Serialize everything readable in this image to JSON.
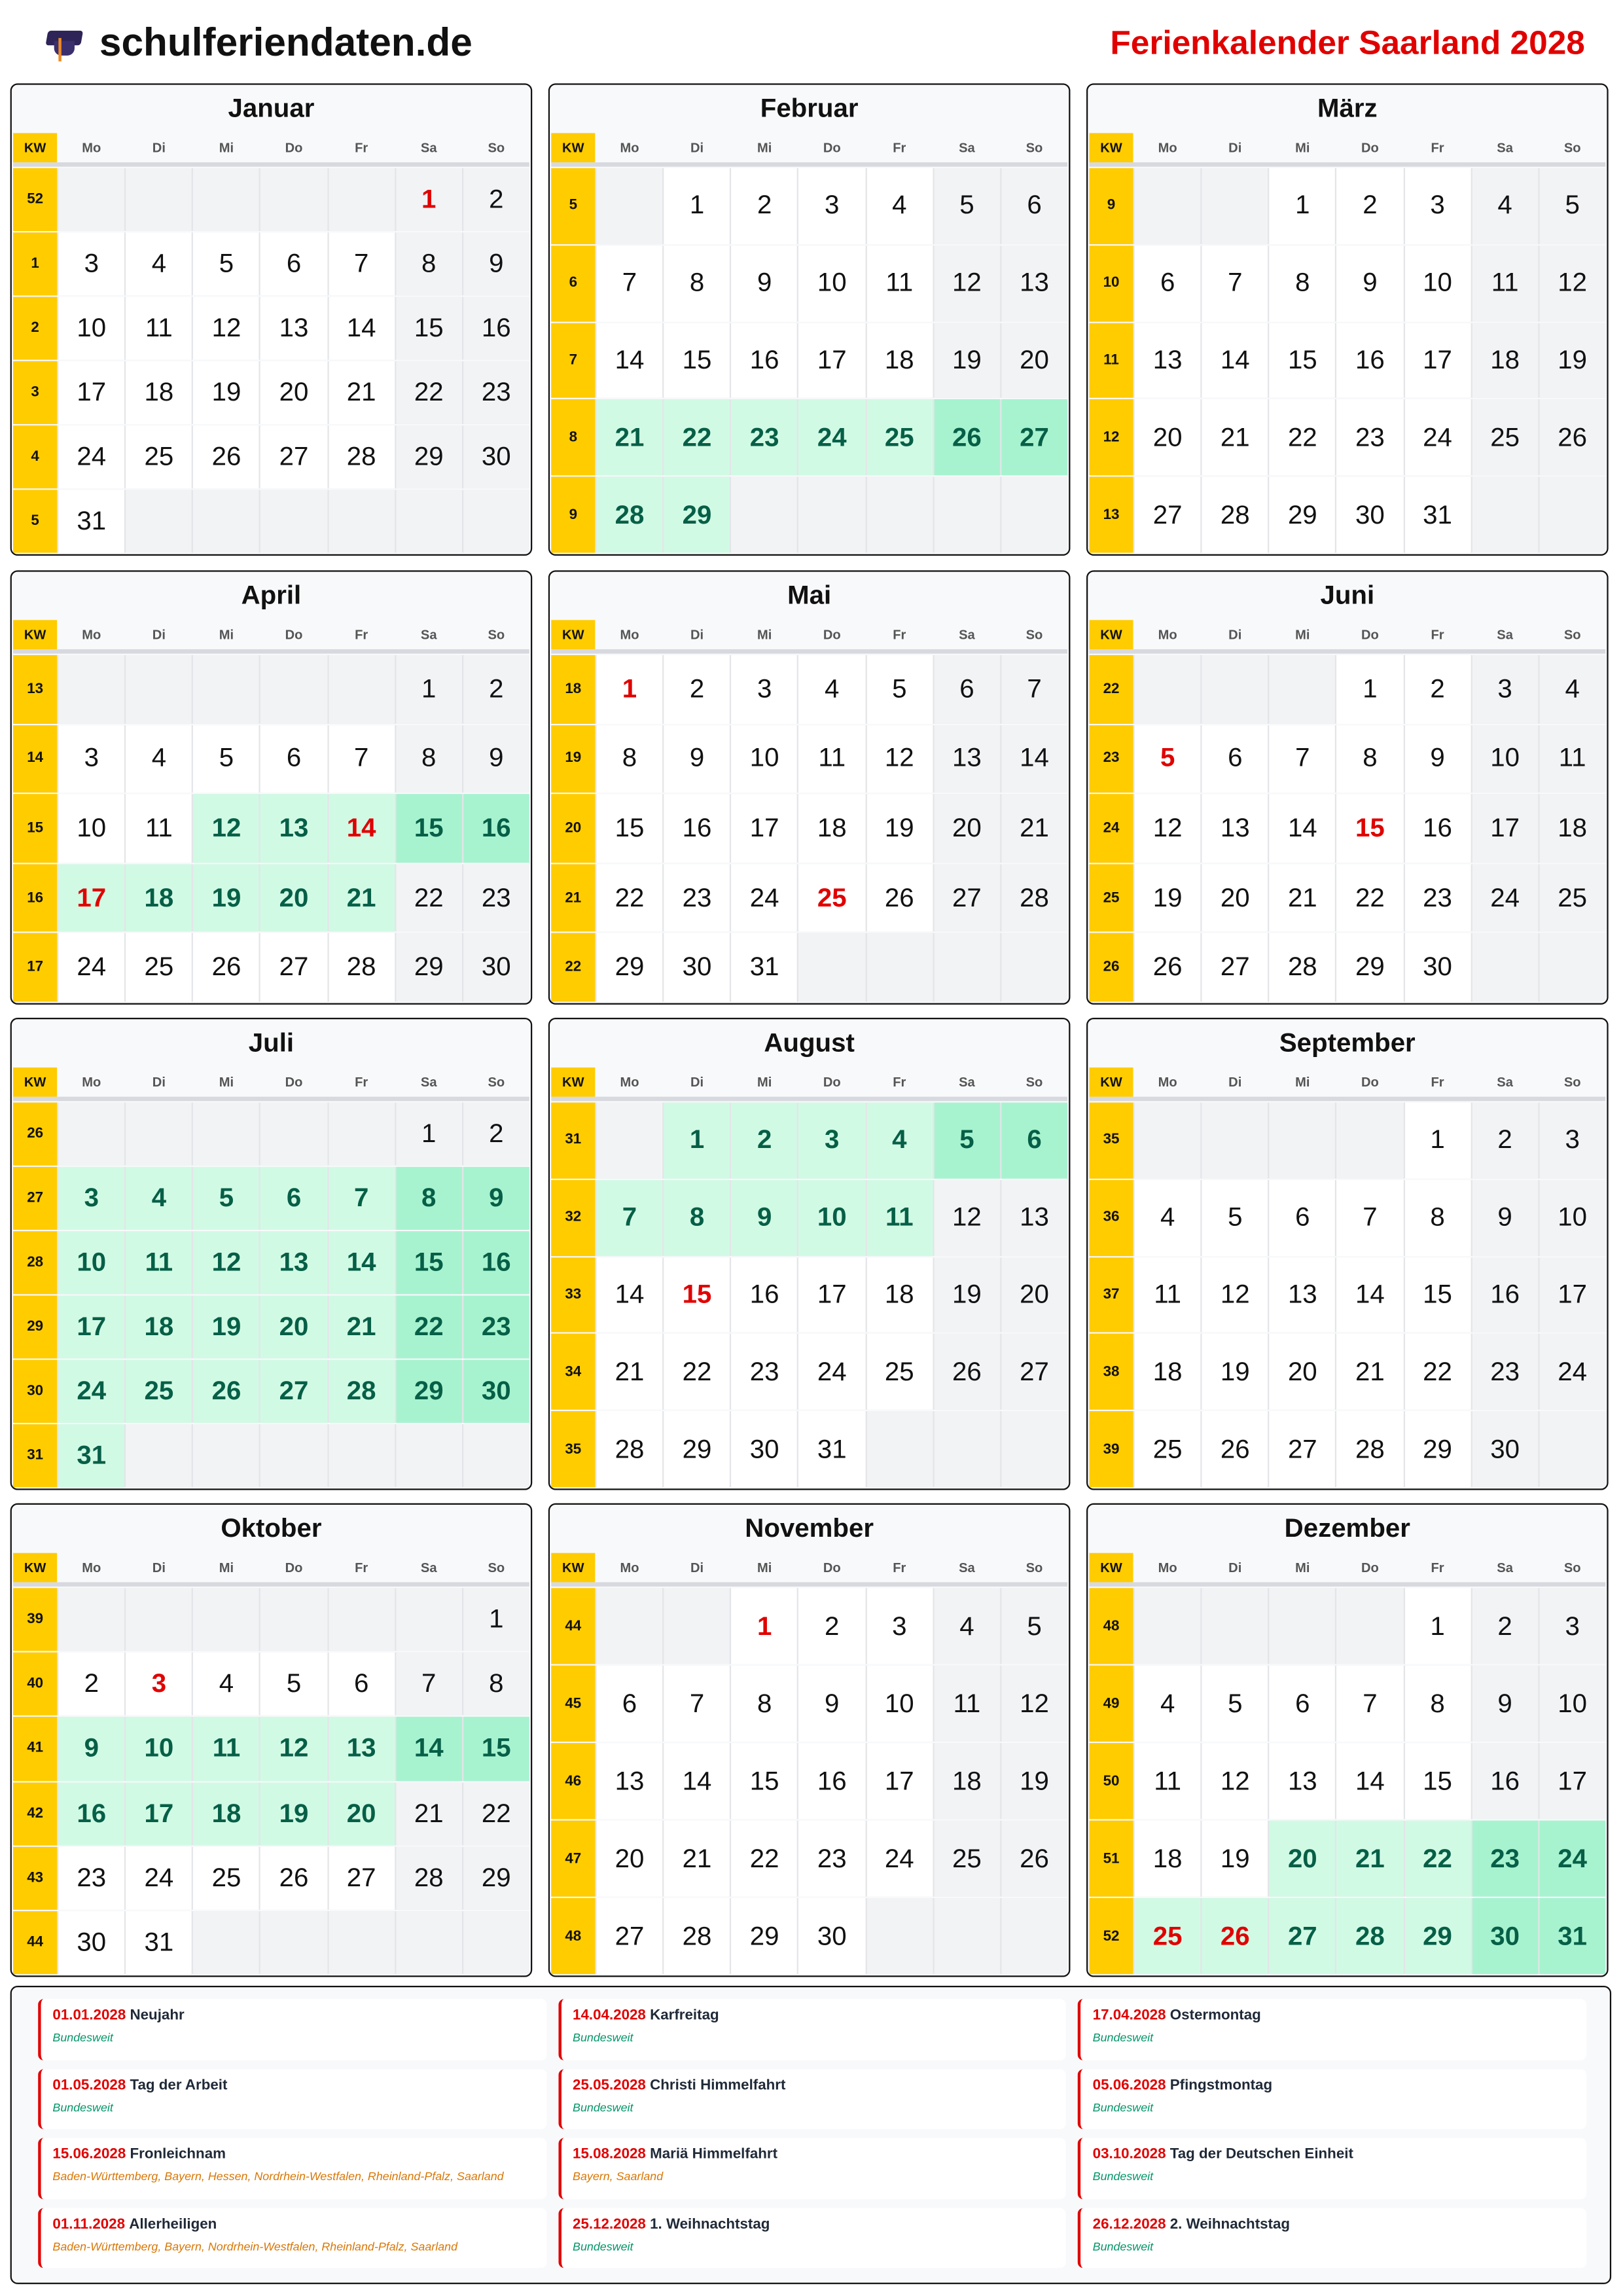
{
  "header": {
    "logo_text": "schulferiendaten.de",
    "title": "Ferienkalender Saarland 2028"
  },
  "colors": {
    "red": "#e00000",
    "kw_yellow": "#ffcc00",
    "vacation": "#d1fae5",
    "vacation_weekend": "#a7f3d0",
    "vacation_text": "#065f46",
    "weekend": "#f2f3f5",
    "bundesweit": "#059669",
    "regional": "#d97706"
  },
  "labels": {
    "kw": "KW",
    "days": [
      "Mo",
      "Di",
      "Mi",
      "Do",
      "Fr",
      "Sa",
      "So"
    ]
  },
  "months": [
    {
      "name": "Januar",
      "weeks": [
        {
          "kw": 52,
          "days": [
            null,
            null,
            null,
            null,
            null,
            1,
            2
          ]
        },
        {
          "kw": 1,
          "days": [
            3,
            4,
            5,
            6,
            7,
            8,
            9
          ]
        },
        {
          "kw": 2,
          "days": [
            10,
            11,
            12,
            13,
            14,
            15,
            16
          ]
        },
        {
          "kw": 3,
          "days": [
            17,
            18,
            19,
            20,
            21,
            22,
            23
          ]
        },
        {
          "kw": 4,
          "days": [
            24,
            25,
            26,
            27,
            28,
            29,
            30
          ]
        },
        {
          "kw": 5,
          "days": [
            31,
            null,
            null,
            null,
            null,
            null,
            null
          ]
        }
      ],
      "vacation": [],
      "holidays": [
        1
      ]
    },
    {
      "name": "Februar",
      "weeks": [
        {
          "kw": 5,
          "days": [
            null,
            1,
            2,
            3,
            4,
            5,
            6
          ]
        },
        {
          "kw": 6,
          "days": [
            7,
            8,
            9,
            10,
            11,
            12,
            13
          ]
        },
        {
          "kw": 7,
          "days": [
            14,
            15,
            16,
            17,
            18,
            19,
            20
          ]
        },
        {
          "kw": 8,
          "days": [
            21,
            22,
            23,
            24,
            25,
            26,
            27
          ]
        },
        {
          "kw": 9,
          "days": [
            28,
            29,
            null,
            null,
            null,
            null,
            null
          ]
        }
      ],
      "vacation": [
        21,
        22,
        23,
        24,
        25,
        26,
        27,
        28,
        29
      ],
      "holidays": []
    },
    {
      "name": "März",
      "weeks": [
        {
          "kw": 9,
          "days": [
            null,
            null,
            1,
            2,
            3,
            4,
            5
          ]
        },
        {
          "kw": 10,
          "days": [
            6,
            7,
            8,
            9,
            10,
            11,
            12
          ]
        },
        {
          "kw": 11,
          "days": [
            13,
            14,
            15,
            16,
            17,
            18,
            19
          ]
        },
        {
          "kw": 12,
          "days": [
            20,
            21,
            22,
            23,
            24,
            25,
            26
          ]
        },
        {
          "kw": 13,
          "days": [
            27,
            28,
            29,
            30,
            31,
            null,
            null
          ]
        }
      ],
      "vacation": [],
      "holidays": []
    },
    {
      "name": "April",
      "weeks": [
        {
          "kw": 13,
          "days": [
            null,
            null,
            null,
            null,
            null,
            1,
            2
          ]
        },
        {
          "kw": 14,
          "days": [
            3,
            4,
            5,
            6,
            7,
            8,
            9
          ]
        },
        {
          "kw": 15,
          "days": [
            10,
            11,
            12,
            13,
            14,
            15,
            16
          ]
        },
        {
          "kw": 16,
          "days": [
            17,
            18,
            19,
            20,
            21,
            22,
            23
          ]
        },
        {
          "kw": 17,
          "days": [
            24,
            25,
            26,
            27,
            28,
            29,
            30
          ]
        }
      ],
      "vacation": [
        12,
        13,
        14,
        15,
        16,
        17,
        18,
        19,
        20,
        21
      ],
      "holidays": [
        14,
        17
      ]
    },
    {
      "name": "Mai",
      "weeks": [
        {
          "kw": 18,
          "days": [
            1,
            2,
            3,
            4,
            5,
            6,
            7
          ]
        },
        {
          "kw": 19,
          "days": [
            8,
            9,
            10,
            11,
            12,
            13,
            14
          ]
        },
        {
          "kw": 20,
          "days": [
            15,
            16,
            17,
            18,
            19,
            20,
            21
          ]
        },
        {
          "kw": 21,
          "days": [
            22,
            23,
            24,
            25,
            26,
            27,
            28
          ]
        },
        {
          "kw": 22,
          "days": [
            29,
            30,
            31,
            null,
            null,
            null,
            null
          ]
        }
      ],
      "vacation": [],
      "holidays": [
        1,
        25
      ]
    },
    {
      "name": "Juni",
      "weeks": [
        {
          "kw": 22,
          "days": [
            null,
            null,
            null,
            1,
            2,
            3,
            4
          ]
        },
        {
          "kw": 23,
          "days": [
            5,
            6,
            7,
            8,
            9,
            10,
            11
          ]
        },
        {
          "kw": 24,
          "days": [
            12,
            13,
            14,
            15,
            16,
            17,
            18
          ]
        },
        {
          "kw": 25,
          "days": [
            19,
            20,
            21,
            22,
            23,
            24,
            25
          ]
        },
        {
          "kw": 26,
          "days": [
            26,
            27,
            28,
            29,
            30,
            null,
            null
          ]
        }
      ],
      "vacation": [],
      "holidays": [
        5,
        15
      ]
    },
    {
      "name": "Juli",
      "weeks": [
        {
          "kw": 26,
          "days": [
            null,
            null,
            null,
            null,
            null,
            1,
            2
          ]
        },
        {
          "kw": 27,
          "days": [
            3,
            4,
            5,
            6,
            7,
            8,
            9
          ]
        },
        {
          "kw": 28,
          "days": [
            10,
            11,
            12,
            13,
            14,
            15,
            16
          ]
        },
        {
          "kw": 29,
          "days": [
            17,
            18,
            19,
            20,
            21,
            22,
            23
          ]
        },
        {
          "kw": 30,
          "days": [
            24,
            25,
            26,
            27,
            28,
            29,
            30
          ]
        },
        {
          "kw": 31,
          "days": [
            31,
            null,
            null,
            null,
            null,
            null,
            null
          ]
        }
      ],
      "vacation": [
        3,
        4,
        5,
        6,
        7,
        8,
        9,
        10,
        11,
        12,
        13,
        14,
        15,
        16,
        17,
        18,
        19,
        20,
        21,
        22,
        23,
        24,
        25,
        26,
        27,
        28,
        29,
        30,
        31
      ],
      "holidays": []
    },
    {
      "name": "August",
      "weeks": [
        {
          "kw": 31,
          "days": [
            null,
            1,
            2,
            3,
            4,
            5,
            6
          ]
        },
        {
          "kw": 32,
          "days": [
            7,
            8,
            9,
            10,
            11,
            12,
            13
          ]
        },
        {
          "kw": 33,
          "days": [
            14,
            15,
            16,
            17,
            18,
            19,
            20
          ]
        },
        {
          "kw": 34,
          "days": [
            21,
            22,
            23,
            24,
            25,
            26,
            27
          ]
        },
        {
          "kw": 35,
          "days": [
            28,
            29,
            30,
            31,
            null,
            null,
            null
          ]
        }
      ],
      "vacation": [
        1,
        2,
        3,
        4,
        5,
        6,
        7,
        8,
        9,
        10,
        11
      ],
      "holidays": [
        15
      ]
    },
    {
      "name": "September",
      "weeks": [
        {
          "kw": 35,
          "days": [
            null,
            null,
            null,
            null,
            1,
            2,
            3
          ]
        },
        {
          "kw": 36,
          "days": [
            4,
            5,
            6,
            7,
            8,
            9,
            10
          ]
        },
        {
          "kw": 37,
          "days": [
            11,
            12,
            13,
            14,
            15,
            16,
            17
          ]
        },
        {
          "kw": 38,
          "days": [
            18,
            19,
            20,
            21,
            22,
            23,
            24
          ]
        },
        {
          "kw": 39,
          "days": [
            25,
            26,
            27,
            28,
            29,
            30,
            null
          ]
        }
      ],
      "vacation": [],
      "holidays": []
    },
    {
      "name": "Oktober",
      "weeks": [
        {
          "kw": 39,
          "days": [
            null,
            null,
            null,
            null,
            null,
            null,
            1
          ]
        },
        {
          "kw": 40,
          "days": [
            2,
            3,
            4,
            5,
            6,
            7,
            8
          ]
        },
        {
          "kw": 41,
          "days": [
            9,
            10,
            11,
            12,
            13,
            14,
            15
          ]
        },
        {
          "kw": 42,
          "days": [
            16,
            17,
            18,
            19,
            20,
            21,
            22
          ]
        },
        {
          "kw": 43,
          "days": [
            23,
            24,
            25,
            26,
            27,
            28,
            29
          ]
        },
        {
          "kw": 44,
          "days": [
            30,
            31,
            null,
            null,
            null,
            null,
            null
          ]
        }
      ],
      "vacation": [
        9,
        10,
        11,
        12,
        13,
        14,
        15,
        16,
        17,
        18,
        19,
        20
      ],
      "holidays": [
        3
      ]
    },
    {
      "name": "November",
      "weeks": [
        {
          "kw": 44,
          "days": [
            null,
            null,
            1,
            2,
            3,
            4,
            5
          ]
        },
        {
          "kw": 45,
          "days": [
            6,
            7,
            8,
            9,
            10,
            11,
            12
          ]
        },
        {
          "kw": 46,
          "days": [
            13,
            14,
            15,
            16,
            17,
            18,
            19
          ]
        },
        {
          "kw": 47,
          "days": [
            20,
            21,
            22,
            23,
            24,
            25,
            26
          ]
        },
        {
          "kw": 48,
          "days": [
            27,
            28,
            29,
            30,
            null,
            null,
            null
          ]
        }
      ],
      "vacation": [],
      "holidays": [
        1
      ]
    },
    {
      "name": "Dezember",
      "weeks": [
        {
          "kw": 48,
          "days": [
            null,
            null,
            null,
            null,
            1,
            2,
            3
          ]
        },
        {
          "kw": 49,
          "days": [
            4,
            5,
            6,
            7,
            8,
            9,
            10
          ]
        },
        {
          "kw": 50,
          "days": [
            11,
            12,
            13,
            14,
            15,
            16,
            17
          ]
        },
        {
          "kw": 51,
          "days": [
            18,
            19,
            20,
            21,
            22,
            23,
            24
          ]
        },
        {
          "kw": 52,
          "days": [
            25,
            26,
            27,
            28,
            29,
            30,
            31
          ]
        }
      ],
      "vacation": [
        20,
        21,
        22,
        23,
        24,
        25,
        26,
        27,
        28,
        29,
        30,
        31
      ],
      "holidays": [
        25,
        26
      ]
    }
  ],
  "holidays": [
    {
      "date": "01.01.2028",
      "name": "Neujahr",
      "region": "Bundesweit",
      "nationwide": true
    },
    {
      "date": "14.04.2028",
      "name": "Karfreitag",
      "region": "Bundesweit",
      "nationwide": true
    },
    {
      "date": "17.04.2028",
      "name": "Ostermontag",
      "region": "Bundesweit",
      "nationwide": true
    },
    {
      "date": "01.05.2028",
      "name": "Tag der Arbeit",
      "region": "Bundesweit",
      "nationwide": true
    },
    {
      "date": "25.05.2028",
      "name": "Christi Himmelfahrt",
      "region": "Bundesweit",
      "nationwide": true
    },
    {
      "date": "05.06.2028",
      "name": "Pfingstmontag",
      "region": "Bundesweit",
      "nationwide": true
    },
    {
      "date": "15.06.2028",
      "name": "Fronleichnam",
      "region": "Baden-Württemberg, Bayern, Hessen, Nordrhein-Westfalen, Rheinland-Pfalz, Saarland",
      "nationwide": false
    },
    {
      "date": "15.08.2028",
      "name": "Mariä Himmelfahrt",
      "region": "Bayern, Saarland",
      "nationwide": false
    },
    {
      "date": "03.10.2028",
      "name": "Tag der Deutschen Einheit",
      "region": "Bundesweit",
      "nationwide": true
    },
    {
      "date": "01.11.2028",
      "name": "Allerheiligen",
      "region": "Baden-Württemberg, Bayern, Nordrhein-Westfalen, Rheinland-Pfalz, Saarland",
      "nationwide": false
    },
    {
      "date": "25.12.2028",
      "name": "1. Weihnachtstag",
      "region": "Bundesweit",
      "nationwide": true
    },
    {
      "date": "26.12.2028",
      "name": "2. Weihnachtstag",
      "region": "Bundesweit",
      "nationwide": true
    }
  ]
}
